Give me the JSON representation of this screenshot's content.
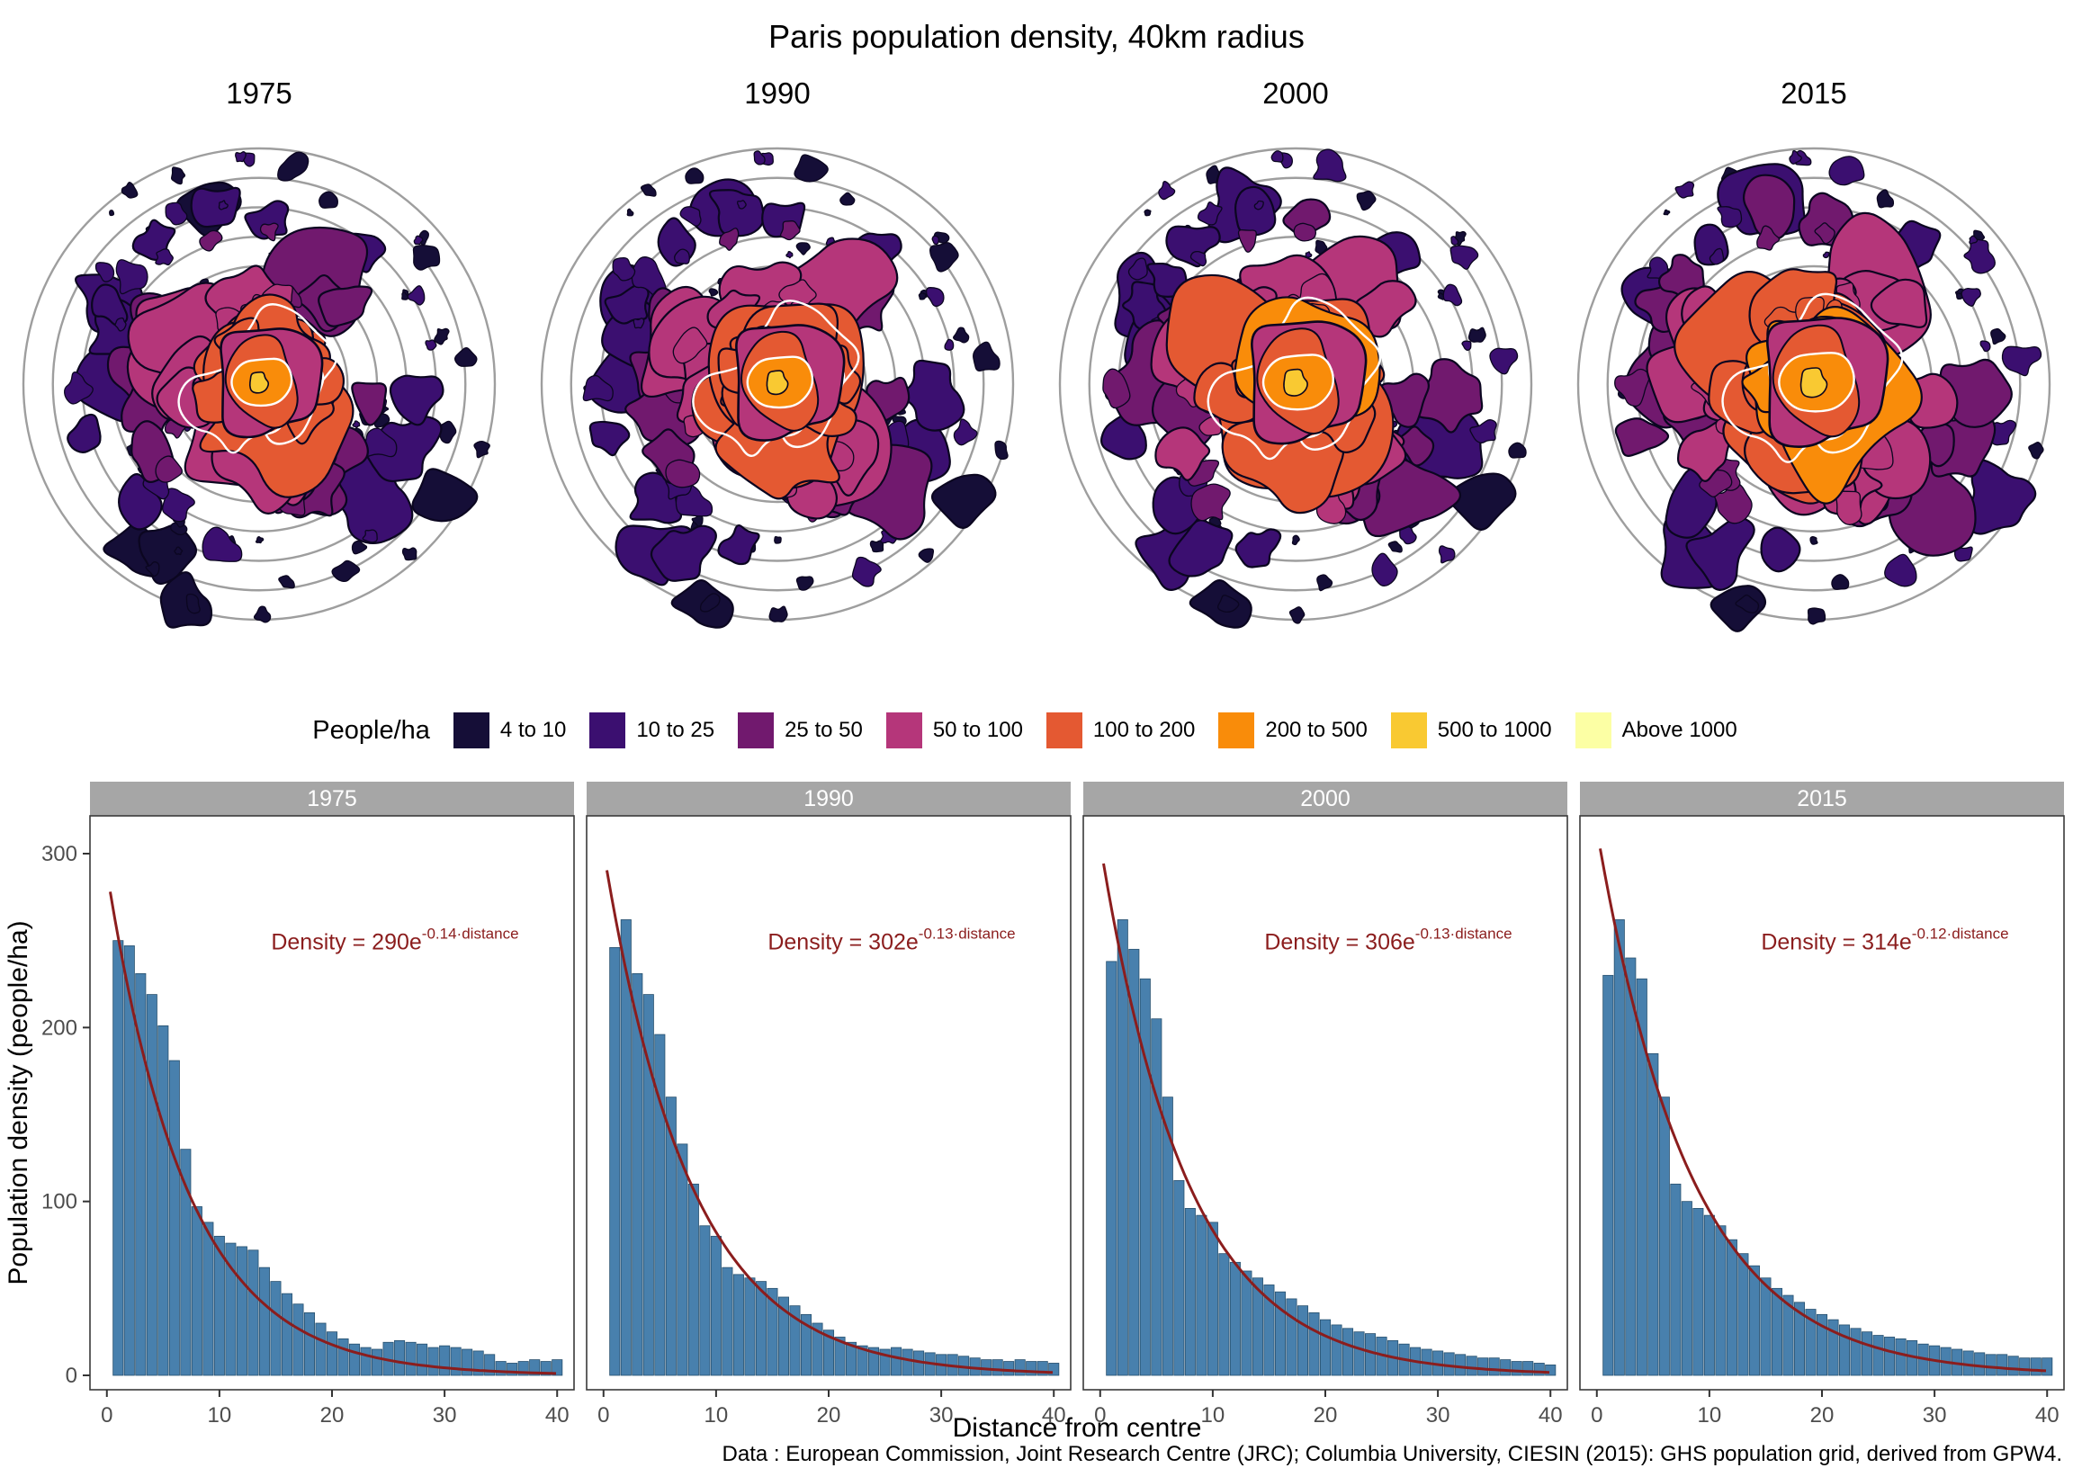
{
  "title": "Paris population density, 40km radius",
  "years": [
    "1975",
    "1990",
    "2000",
    "2015"
  ],
  "legend": {
    "title": "People/ha",
    "items": [
      {
        "label": "4 to 10",
        "color": "#150e37"
      },
      {
        "label": "10 to 25",
        "color": "#3b0f70"
      },
      {
        "label": "25 to 50",
        "color": "#71196e"
      },
      {
        "label": "50 to 100",
        "color": "#b5367a"
      },
      {
        "label": "100 to 200",
        "color": "#e45932"
      },
      {
        "label": "200 to 500",
        "color": "#f98c0a"
      },
      {
        "label": "500 to 1000",
        "color": "#f9c932"
      },
      {
        "label": "Above 1000",
        "color": "#fcffa4"
      }
    ]
  },
  "map": {
    "rings": 8,
    "ring_color": "#9e9e9e",
    "outline_color": "#0b0620",
    "growth": [
      1,
      1.07,
      1.13,
      1.2
    ]
  },
  "caption": "Data : European Commission, Joint Research Centre (JRC); Columbia University, CIESIN (2015): GHS population grid, derived from GPW4.",
  "chart_data": {
    "type": "bar",
    "title": "Paris population density, 40km radius",
    "xlabel": "Distance from centre",
    "ylabel": "Population density (people/ha)",
    "x_range": [
      0,
      40
    ],
    "ylim": [
      0,
      300
    ],
    "y_ticks": [
      0,
      100,
      200,
      300
    ],
    "x_ticks": [
      0,
      10,
      20,
      30,
      40
    ],
    "bar_color": "#4880ad",
    "bar_edge_color": "#27506e",
    "fit_color": "#8b1d1d",
    "strip_color": "#a6a6a6",
    "facets": [
      {
        "year": "1975",
        "fit": {
          "a": 290,
          "b": -0.14
        },
        "equation_base": "Density = 290e",
        "equation_exp": "-0.14·distance",
        "distances_note": "x = 1..40 km",
        "values": [
          250,
          247,
          231,
          219,
          201,
          181,
          130,
          97,
          88,
          80,
          76,
          74,
          72,
          62,
          54,
          47,
          41,
          36,
          30,
          25,
          21,
          18,
          16,
          15,
          19,
          20,
          19,
          18,
          16,
          17,
          16,
          15,
          14,
          12,
          8,
          7,
          8,
          9,
          8,
          9
        ]
      },
      {
        "year": "1990",
        "fit": {
          "a": 302,
          "b": -0.13
        },
        "equation_base": "Density = 302e",
        "equation_exp": "-0.13·distance",
        "distances_note": "x = 1..40 km",
        "values": [
          246,
          262,
          231,
          219,
          196,
          160,
          133,
          110,
          86,
          80,
          62,
          58,
          56,
          54,
          50,
          45,
          40,
          35,
          30,
          26,
          22,
          19,
          17,
          16,
          15,
          16,
          15,
          14,
          13,
          12,
          12,
          11,
          10,
          9,
          9,
          8,
          9,
          8,
          8,
          7
        ]
      },
      {
        "year": "2000",
        "fit": {
          "a": 306,
          "b": -0.13
        },
        "equation_base": "Density = 306e",
        "equation_exp": "-0.13·distance",
        "distances_note": "x = 1..40 km",
        "values": [
          238,
          262,
          245,
          228,
          205,
          160,
          112,
          96,
          92,
          88,
          70,
          65,
          60,
          56,
          52,
          48,
          44,
          40,
          36,
          32,
          29,
          27,
          25,
          24,
          22,
          20,
          18,
          16,
          15,
          14,
          13,
          12,
          11,
          10,
          10,
          9,
          8,
          8,
          7,
          6
        ]
      },
      {
        "year": "2015",
        "fit": {
          "a": 314,
          "b": -0.12
        },
        "equation_base": "Density = 314e",
        "equation_exp": "-0.12·distance",
        "distances_note": "x = 1..40 km",
        "values": [
          230,
          262,
          240,
          228,
          185,
          160,
          110,
          100,
          96,
          92,
          86,
          78,
          70,
          63,
          56,
          50,
          46,
          42,
          38,
          35,
          32,
          29,
          27,
          25,
          23,
          22,
          21,
          20,
          18,
          17,
          16,
          15,
          14,
          13,
          12,
          12,
          11,
          10,
          10,
          10
        ]
      }
    ]
  }
}
